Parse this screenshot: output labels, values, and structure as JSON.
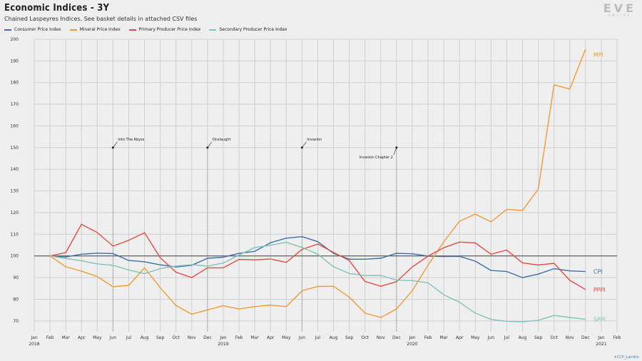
{
  "header": {
    "title": "Economic Indices - 3Y",
    "subtitle": "Chained Laspeyres Indices. See basket details in attached CSV files"
  },
  "logo": {
    "word": "EVE",
    "sub": "ONLINE"
  },
  "credit": "CCP_Larrikin",
  "chart_data": {
    "type": "line",
    "x": [
      "2018-02",
      "2018-03",
      "2018-04",
      "2018-05",
      "2018-06",
      "2018-07",
      "2018-08",
      "2018-09",
      "2018-10",
      "2018-11",
      "2018-12",
      "2019-01",
      "2019-02",
      "2019-03",
      "2019-04",
      "2019-05",
      "2019-06",
      "2019-07",
      "2019-08",
      "2019-09",
      "2019-10",
      "2019-11",
      "2019-12",
      "2020-01",
      "2020-02",
      "2020-03",
      "2020-04",
      "2020-05",
      "2020-06",
      "2020-07",
      "2020-08",
      "2020-09",
      "2020-10",
      "2020-11",
      "2020-12"
    ],
    "x_ticks": [
      {
        "date": "2018-01",
        "label": "Jan",
        "year": "2018"
      },
      {
        "date": "2018-02",
        "label": "Feb"
      },
      {
        "date": "2018-03",
        "label": "Mar"
      },
      {
        "date": "2018-04",
        "label": "Apr"
      },
      {
        "date": "2018-05",
        "label": "May"
      },
      {
        "date": "2018-06",
        "label": "Jun"
      },
      {
        "date": "2018-07",
        "label": "Jul"
      },
      {
        "date": "2018-08",
        "label": "Aug"
      },
      {
        "date": "2018-09",
        "label": "Sep"
      },
      {
        "date": "2018-10",
        "label": "Oct"
      },
      {
        "date": "2018-11",
        "label": "Nov"
      },
      {
        "date": "2018-12",
        "label": "Dec"
      },
      {
        "date": "2019-01",
        "label": "Jan",
        "year": "2019"
      },
      {
        "date": "2019-02",
        "label": "Feb"
      },
      {
        "date": "2019-03",
        "label": "Mar"
      },
      {
        "date": "2019-04",
        "label": "Apr"
      },
      {
        "date": "2019-05",
        "label": "May"
      },
      {
        "date": "2019-06",
        "label": "Jun"
      },
      {
        "date": "2019-07",
        "label": "Jul"
      },
      {
        "date": "2019-08",
        "label": "Aug"
      },
      {
        "date": "2019-09",
        "label": "Sep"
      },
      {
        "date": "2019-10",
        "label": "Oct"
      },
      {
        "date": "2019-11",
        "label": "Nov"
      },
      {
        "date": "2019-12",
        "label": "Dec"
      },
      {
        "date": "2020-01",
        "label": "Jan",
        "year": "2020"
      },
      {
        "date": "2020-02",
        "label": "Feb"
      },
      {
        "date": "2020-03",
        "label": "Mar"
      },
      {
        "date": "2020-04",
        "label": "Apr"
      },
      {
        "date": "2020-05",
        "label": "May"
      },
      {
        "date": "2020-06",
        "label": "Jun"
      },
      {
        "date": "2020-07",
        "label": "Jul"
      },
      {
        "date": "2020-08",
        "label": "Aug"
      },
      {
        "date": "2020-09",
        "label": "Sep"
      },
      {
        "date": "2020-10",
        "label": "Oct"
      },
      {
        "date": "2020-11",
        "label": "Nov"
      },
      {
        "date": "2020-12",
        "label": "Dec"
      },
      {
        "date": "2021-01",
        "label": "Jan",
        "year": "2021"
      },
      {
        "date": "2021-02",
        "label": "Feb"
      }
    ],
    "xlim": [
      "2018-01",
      "2021-02"
    ],
    "ylim": [
      65,
      200
    ],
    "yticks": [
      70,
      80,
      90,
      100,
      110,
      120,
      130,
      140,
      150,
      160,
      170,
      180,
      190,
      200
    ],
    "reference_line": 100,
    "grid": true,
    "legend_position": "top-left",
    "series": [
      {
        "name": "Consumer Price Index",
        "end_label": "CPI",
        "color": "#3f6fa8",
        "values": [
          100,
          99.5,
          100.8,
          101.3,
          101.1,
          97.9,
          97.3,
          95.9,
          94.9,
          95.7,
          98.9,
          99.4,
          101.2,
          102.1,
          106.1,
          108.2,
          108.9,
          106.6,
          101.2,
          98.5,
          98.5,
          98.9,
          101.2,
          101.0,
          99.9,
          99.7,
          99.8,
          97.6,
          93.3,
          92.8,
          90.0,
          91.6,
          94.1,
          93.1,
          92.8
        ]
      },
      {
        "name": "Mineral Price Index",
        "end_label": "MPI",
        "color": "#f39a32",
        "values": [
          100,
          95,
          93,
          90.5,
          85.8,
          86.4,
          94.5,
          85.3,
          77.1,
          73.1,
          75.1,
          77.0,
          75.5,
          76.6,
          77.3,
          76.6,
          83.9,
          85.9,
          86.0,
          81.0,
          73.6,
          71.6,
          75.5,
          83.9,
          95.7,
          106.5,
          116.0,
          119.3,
          115.7,
          121.5,
          121.0,
          130.9,
          179.0,
          177.0,
          195.5
        ]
      },
      {
        "name": "Primary Producer Price Index",
        "end_label": "PPPI",
        "color": "#e64c44",
        "values": [
          100,
          101.5,
          114.6,
          110.8,
          104.5,
          107.2,
          110.7,
          99.2,
          92.5,
          90.0,
          94.5,
          94.5,
          98.4,
          98.2,
          98.6,
          97.0,
          103.0,
          105.5,
          101.6,
          97.9,
          88.2,
          86.0,
          88.1,
          94.9,
          99.9,
          103.8,
          106.4,
          106.0,
          100.8,
          102.7,
          96.8,
          95.8,
          96.6,
          88.7,
          84.5
        ]
      },
      {
        "name": "Secondary Producer Price Index",
        "end_label": "SPPI",
        "color": "#7ec4bb",
        "values": [
          100,
          98.8,
          97.8,
          96.3,
          95.7,
          93.5,
          91.8,
          94.1,
          95.3,
          96.0,
          95.3,
          96.7,
          100.4,
          103.9,
          104.9,
          106.3,
          103.9,
          100.8,
          95.0,
          91.9,
          90.9,
          91.0,
          88.8,
          88.6,
          87.6,
          82.1,
          78.6,
          73.6,
          70.7,
          69.8,
          69.6,
          70.3,
          72.5,
          71.6,
          70.8
        ]
      }
    ],
    "annotations": [
      {
        "label": "Into The Abyss",
        "date": "2018-06",
        "y": 150
      },
      {
        "label": "Onslaught",
        "date": "2018-12",
        "y": 150
      },
      {
        "label": "Invasion",
        "date": "2019-06",
        "y": 150
      },
      {
        "label": "Invasion Chapter 2",
        "date": "2019-12",
        "y": 150
      }
    ]
  }
}
